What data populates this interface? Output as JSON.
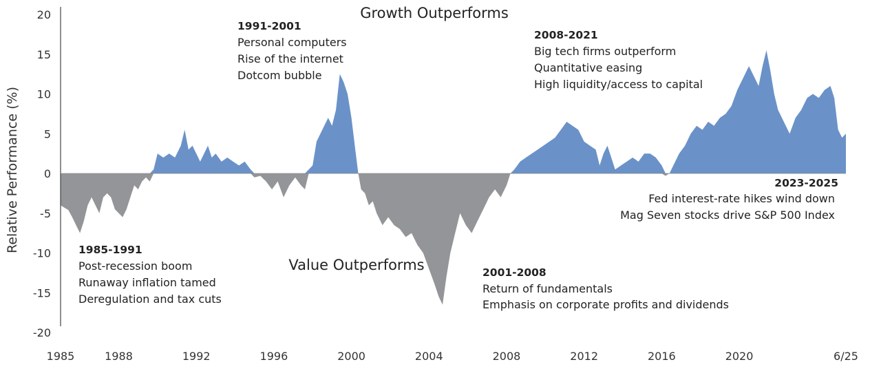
{
  "chart_data": {
    "type": "area",
    "title": "",
    "xlabel": "",
    "ylabel": "Relative Performance (%)",
    "ylim": [
      -20,
      20
    ],
    "yticks": [
      "20",
      "15",
      "10",
      "5",
      "0",
      "-5",
      "-10",
      "-15",
      "-20"
    ],
    "xlim": [
      1985,
      2025.5
    ],
    "xticks": [
      {
        "x": 1985,
        "label": "1985"
      },
      {
        "x": 1988,
        "label": "1988"
      },
      {
        "x": 1992,
        "label": "1992"
      },
      {
        "x": 1996,
        "label": "1996"
      },
      {
        "x": 2000,
        "label": "2000"
      },
      {
        "x": 2004,
        "label": "2004"
      },
      {
        "x": 2008,
        "label": "2008"
      },
      {
        "x": 2012,
        "label": "2012"
      },
      {
        "x": 2016,
        "label": "2016"
      },
      {
        "x": 2020,
        "label": "2020"
      },
      {
        "x": 2025.5,
        "label": "6/25"
      }
    ],
    "regions": {
      "growth": "Growth Outperforms",
      "value": "Value Outperforms"
    },
    "colors": {
      "positive": "#6a92c8",
      "negative": "#939598",
      "axis": "#444444"
    },
    "series": [
      {
        "points": [
          [
            1985.0,
            -4.0
          ],
          [
            1985.2,
            -4.3
          ],
          [
            1985.4,
            -4.6
          ],
          [
            1985.6,
            -5.5
          ],
          [
            1985.8,
            -6.5
          ],
          [
            1986.0,
            -7.5
          ],
          [
            1986.2,
            -6.0
          ],
          [
            1986.4,
            -4.0
          ],
          [
            1986.6,
            -3.0
          ],
          [
            1986.8,
            -4.0
          ],
          [
            1987.0,
            -5.0
          ],
          [
            1987.2,
            -3.0
          ],
          [
            1987.4,
            -2.5
          ],
          [
            1987.6,
            -3.0
          ],
          [
            1987.8,
            -4.5
          ],
          [
            1988.0,
            -5.0
          ],
          [
            1988.2,
            -5.5
          ],
          [
            1988.4,
            -4.5
          ],
          [
            1988.6,
            -3.0
          ],
          [
            1988.8,
            -1.5
          ],
          [
            1989.0,
            -2.0
          ],
          [
            1989.2,
            -1.0
          ],
          [
            1989.4,
            -0.5
          ],
          [
            1989.6,
            -1.0
          ],
          [
            1989.8,
            0.5
          ],
          [
            1990.0,
            2.5
          ],
          [
            1990.3,
            2.0
          ],
          [
            1990.6,
            2.5
          ],
          [
            1990.9,
            2.0
          ],
          [
            1991.2,
            3.5
          ],
          [
            1991.4,
            5.5
          ],
          [
            1991.6,
            3.0
          ],
          [
            1991.8,
            3.5
          ],
          [
            1992.0,
            2.5
          ],
          [
            1992.2,
            1.5
          ],
          [
            1992.4,
            2.5
          ],
          [
            1992.6,
            3.5
          ],
          [
            1992.8,
            2.0
          ],
          [
            1993.0,
            2.5
          ],
          [
            1993.3,
            1.5
          ],
          [
            1993.6,
            2.0
          ],
          [
            1993.9,
            1.5
          ],
          [
            1994.2,
            1.0
          ],
          [
            1994.5,
            1.5
          ],
          [
            1994.8,
            0.5
          ],
          [
            1995.0,
            -0.5
          ],
          [
            1995.3,
            -0.3
          ],
          [
            1995.6,
            -1.0
          ],
          [
            1995.9,
            -2.0
          ],
          [
            1996.2,
            -1.0
          ],
          [
            1996.5,
            -3.0
          ],
          [
            1996.8,
            -1.5
          ],
          [
            1997.1,
            -0.5
          ],
          [
            1997.4,
            -1.5
          ],
          [
            1997.6,
            -2.0
          ],
          [
            1997.8,
            0.5
          ],
          [
            1998.0,
            1.0
          ],
          [
            1998.2,
            4.0
          ],
          [
            1998.5,
            5.5
          ],
          [
            1998.8,
            7.0
          ],
          [
            1999.0,
            6.0
          ],
          [
            1999.2,
            8.0
          ],
          [
            1999.4,
            12.5
          ],
          [
            1999.6,
            11.5
          ],
          [
            1999.8,
            10.0
          ],
          [
            2000.0,
            7.0
          ],
          [
            2000.2,
            3.0
          ],
          [
            2000.35,
            0.0
          ],
          [
            2000.5,
            -2.0
          ],
          [
            2000.7,
            -2.5
          ],
          [
            2000.9,
            -4.0
          ],
          [
            2001.1,
            -3.5
          ],
          [
            2001.3,
            -5.0
          ],
          [
            2001.6,
            -6.5
          ],
          [
            2001.9,
            -5.5
          ],
          [
            2002.2,
            -6.5
          ],
          [
            2002.5,
            -7.0
          ],
          [
            2002.8,
            -8.0
          ],
          [
            2003.1,
            -7.5
          ],
          [
            2003.4,
            -9.0
          ],
          [
            2003.7,
            -10.0
          ],
          [
            2004.0,
            -12.0
          ],
          [
            2004.3,
            -14.0
          ],
          [
            2004.5,
            -15.5
          ],
          [
            2004.7,
            -16.5
          ],
          [
            2004.9,
            -13.0
          ],
          [
            2005.1,
            -10.0
          ],
          [
            2005.3,
            -8.0
          ],
          [
            2005.6,
            -5.0
          ],
          [
            2005.9,
            -6.5
          ],
          [
            2006.2,
            -7.5
          ],
          [
            2006.5,
            -6.0
          ],
          [
            2006.8,
            -4.5
          ],
          [
            2007.1,
            -3.0
          ],
          [
            2007.4,
            -2.0
          ],
          [
            2007.7,
            -3.0
          ],
          [
            2008.0,
            -1.5
          ],
          [
            2008.2,
            0.0
          ],
          [
            2008.4,
            0.5
          ],
          [
            2008.7,
            1.5
          ],
          [
            2009.0,
            2.0
          ],
          [
            2009.3,
            2.5
          ],
          [
            2009.6,
            3.0
          ],
          [
            2009.9,
            3.5
          ],
          [
            2010.2,
            4.0
          ],
          [
            2010.5,
            4.5
          ],
          [
            2010.8,
            5.5
          ],
          [
            2011.1,
            6.5
          ],
          [
            2011.4,
            6.0
          ],
          [
            2011.7,
            5.5
          ],
          [
            2012.0,
            4.0
          ],
          [
            2012.3,
            3.5
          ],
          [
            2012.6,
            3.0
          ],
          [
            2012.8,
            1.0
          ],
          [
            2013.0,
            2.5
          ],
          [
            2013.2,
            3.5
          ],
          [
            2013.4,
            2.0
          ],
          [
            2013.6,
            0.5
          ],
          [
            2013.9,
            1.0
          ],
          [
            2014.2,
            1.5
          ],
          [
            2014.5,
            2.0
          ],
          [
            2014.8,
            1.5
          ],
          [
            2015.1,
            2.5
          ],
          [
            2015.4,
            2.5
          ],
          [
            2015.7,
            2.0
          ],
          [
            2016.0,
            1.0
          ],
          [
            2016.2,
            -0.3
          ],
          [
            2016.4,
            0.0
          ],
          [
            2016.6,
            1.0
          ],
          [
            2016.9,
            2.5
          ],
          [
            2017.2,
            3.5
          ],
          [
            2017.5,
            5.0
          ],
          [
            2017.8,
            6.0
          ],
          [
            2018.1,
            5.5
          ],
          [
            2018.4,
            6.5
          ],
          [
            2018.7,
            6.0
          ],
          [
            2019.0,
            7.0
          ],
          [
            2019.3,
            7.5
          ],
          [
            2019.6,
            8.5
          ],
          [
            2019.9,
            10.5
          ],
          [
            2020.2,
            12.0
          ],
          [
            2020.5,
            13.5
          ],
          [
            2020.8,
            12.0
          ],
          [
            2021.0,
            11.0
          ],
          [
            2021.2,
            13.5
          ],
          [
            2021.4,
            15.5
          ],
          [
            2021.6,
            13.0
          ],
          [
            2021.8,
            10.0
          ],
          [
            2022.0,
            8.0
          ],
          [
            2022.3,
            6.5
          ],
          [
            2022.6,
            5.0
          ],
          [
            2022.9,
            7.0
          ],
          [
            2023.2,
            8.0
          ],
          [
            2023.5,
            9.5
          ],
          [
            2023.8,
            10.0
          ],
          [
            2024.1,
            9.5
          ],
          [
            2024.4,
            10.5
          ],
          [
            2024.7,
            11.0
          ],
          [
            2024.9,
            9.5
          ],
          [
            2025.1,
            5.5
          ],
          [
            2025.3,
            4.5
          ],
          [
            2025.5,
            5.0
          ]
        ]
      }
    ],
    "annotations": [
      {
        "title": "1985-1991",
        "lines": [
          "Post-recession boom",
          "Runaway inflation tamed",
          "Deregulation and tax cuts"
        ]
      },
      {
        "title": "1991-2001",
        "lines": [
          "Personal computers",
          "Rise of the internet",
          "Dotcom bubble"
        ]
      },
      {
        "title": "2001-2008",
        "lines": [
          "Return of fundamentals",
          "Emphasis on corporate profits and dividends"
        ]
      },
      {
        "title": "2008-2021",
        "lines": [
          "Big tech firms outperform",
          "Quantitative easing",
          "High liquidity/access to capital"
        ]
      },
      {
        "title": "2023-2025",
        "lines": [
          "Fed interest-rate hikes wind down",
          "Mag Seven stocks drive S&P 500 Index"
        ]
      }
    ]
  }
}
